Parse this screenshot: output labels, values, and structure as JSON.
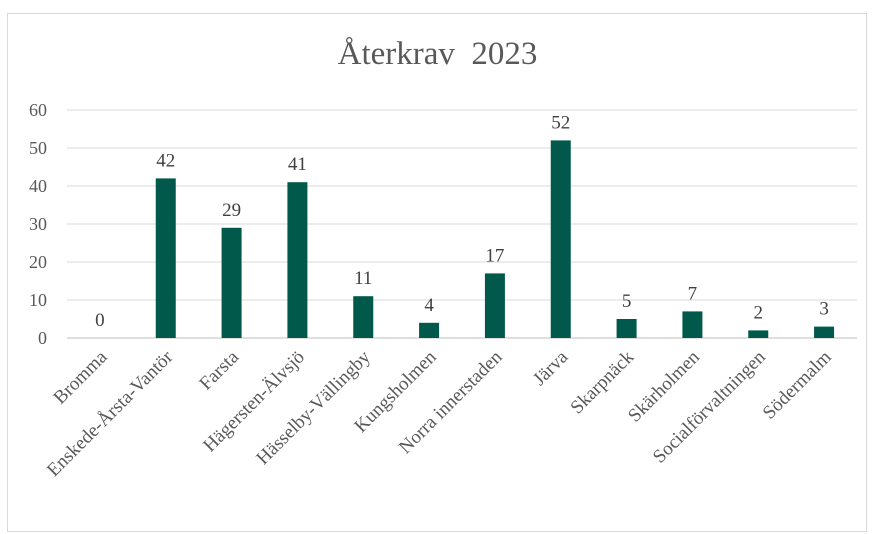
{
  "chart_data": {
    "type": "bar",
    "title": "Återkrav  2023",
    "xlabel": "",
    "ylabel": "",
    "ylim": [
      0,
      60
    ],
    "yticks": [
      0,
      10,
      20,
      30,
      40,
      50,
      60
    ],
    "grid": true,
    "categories": [
      "Bromma",
      "Enskede-Årsta-Vantör",
      "Farsta",
      "Hägersten-Älvsjö",
      "Hässelby-Vällingby",
      "Kungsholmen",
      "Norra innerstaden",
      "Järva",
      "Skarpnäck",
      "Skärholmen",
      "Socialförvaltningen",
      "Södermalm"
    ],
    "values": [
      0,
      42,
      29,
      41,
      11,
      4,
      17,
      52,
      5,
      7,
      2,
      3
    ],
    "data_labels": true,
    "bar_color": "#00594a"
  }
}
